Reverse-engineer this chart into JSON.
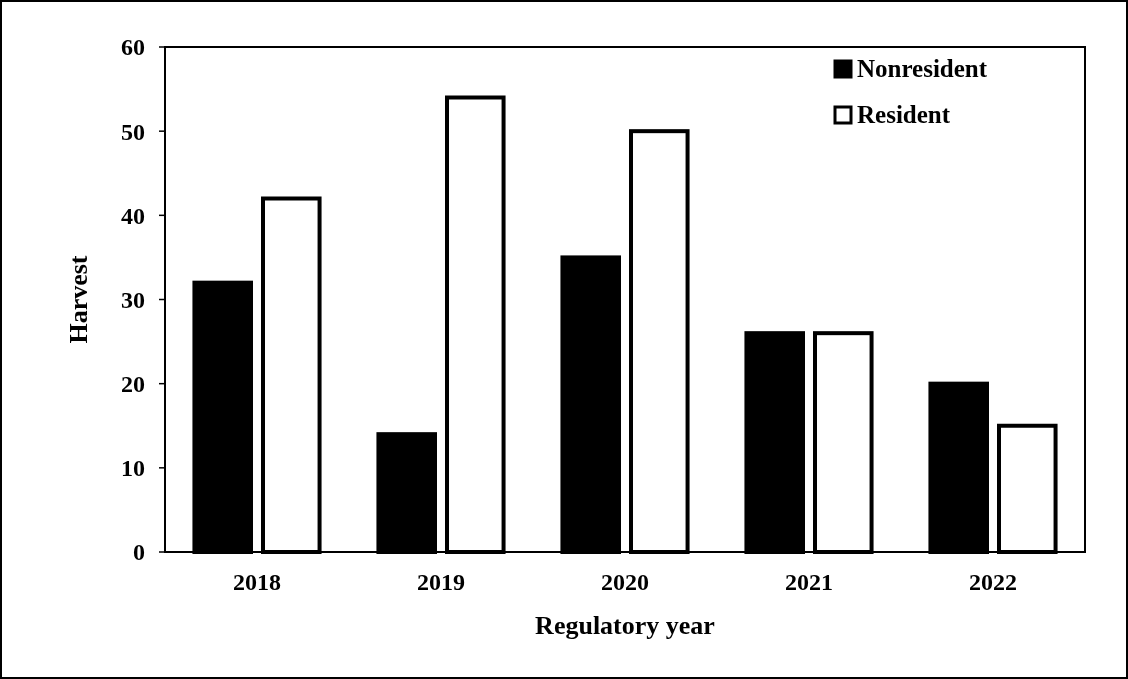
{
  "chart_data": {
    "type": "bar",
    "xlabel": "Regulatory year",
    "ylabel": "Harvest",
    "categories": [
      "2018",
      "2019",
      "2020",
      "2021",
      "2022"
    ],
    "series": [
      {
        "name": "Nonresident",
        "color": "#000000",
        "values": [
          32,
          14,
          35,
          26,
          20
        ]
      },
      {
        "name": "Resident",
        "color": "#ffffff",
        "values": [
          42,
          54,
          50,
          26,
          15
        ]
      }
    ],
    "ylim": [
      0,
      60
    ],
    "yticks": [
      0,
      10,
      20,
      30,
      40,
      50,
      60
    ],
    "grid": false,
    "legend": "top right"
  }
}
